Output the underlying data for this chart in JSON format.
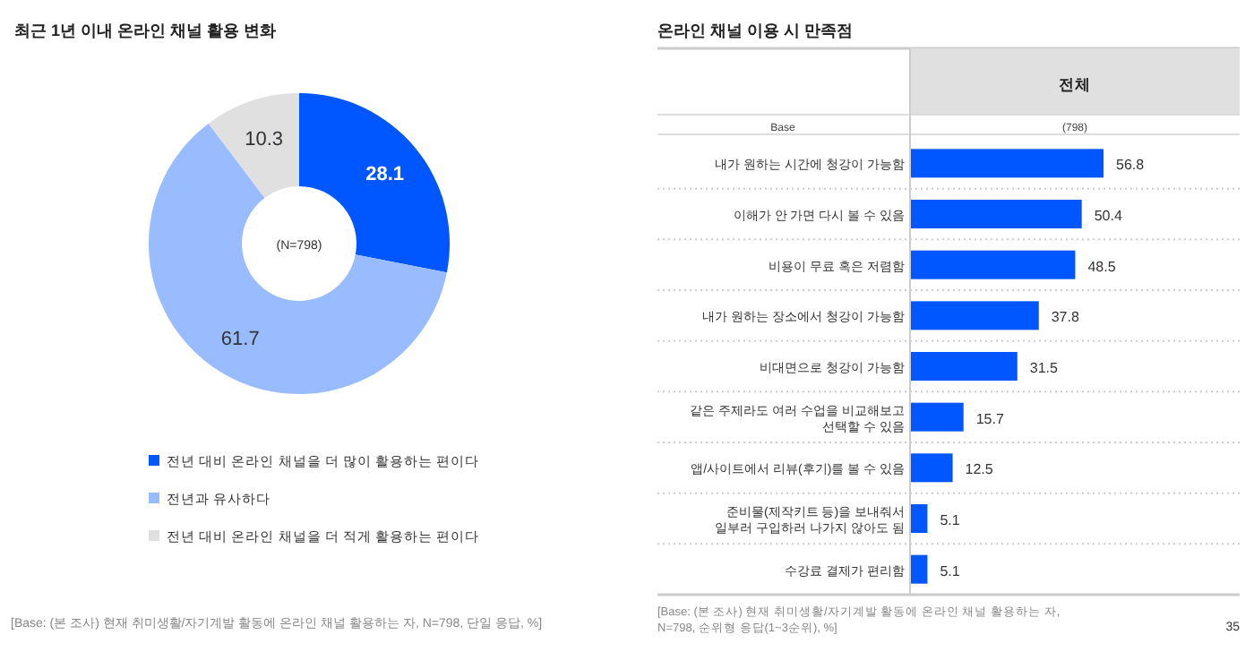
{
  "chart_data": [
    {
      "type": "donut",
      "title": "최근 1년 이내 온라인 채널 활용 변화",
      "categories": [
        "전년 대비 온라인 채널을 더 많이 활용하는 편이다",
        "전년과 유사하다",
        "전년 대비 온라인 채널을 더 적게 활용하는 편이다"
      ],
      "values": [
        28.1,
        61.7,
        10.3
      ],
      "colors": [
        "#0057ff",
        "#99bbff",
        "#e0e0e0"
      ],
      "data_labels": true,
      "legend": "bottom",
      "annotations": [
        "(N=798)",
        "[Base: (본 조사) 현재 취미생활/자기계발 활동에 온라인 채널 활용하는 자, N=798, 단일 응답, %]"
      ]
    },
    {
      "type": "bar",
      "orientation": "horizontal",
      "title": "온라인 채널 이용 시 만족점",
      "categories": [
        "내가 원하는 시간에 청강이 가능함",
        "이해가 안 가면 다시 볼 수 있음",
        "비용이 무료 혹은 저렴함",
        "내가 원하는 장소에서 청강이 가능함",
        "비대면으로 청강이 가능함",
        "같은 주제라도 여러 수업을 비교해보고\n선택할 수 있음",
        "앱/사이트에서 리뷰(후기)를 볼 수 있음",
        "준비물(제작키트 등)을 보내줘서\n일부러 구입하러 나가지 않아도 됨",
        "수강료 결제가 편리함"
      ],
      "values": [
        56.8,
        50.4,
        48.5,
        37.8,
        31.5,
        15.7,
        12.5,
        5.1,
        5.1
      ],
      "color": "#0057ff",
      "data_labels": true,
      "annotations": [
        "전체",
        "Base",
        "(798)",
        "[Base: (본 조사) 현재 취미생활/자기계발 활동에 온라인 채널 활용하는 자,\nN=798, 순위형 응답(1~3순위), %]",
        "35"
      ]
    }
  ]
}
